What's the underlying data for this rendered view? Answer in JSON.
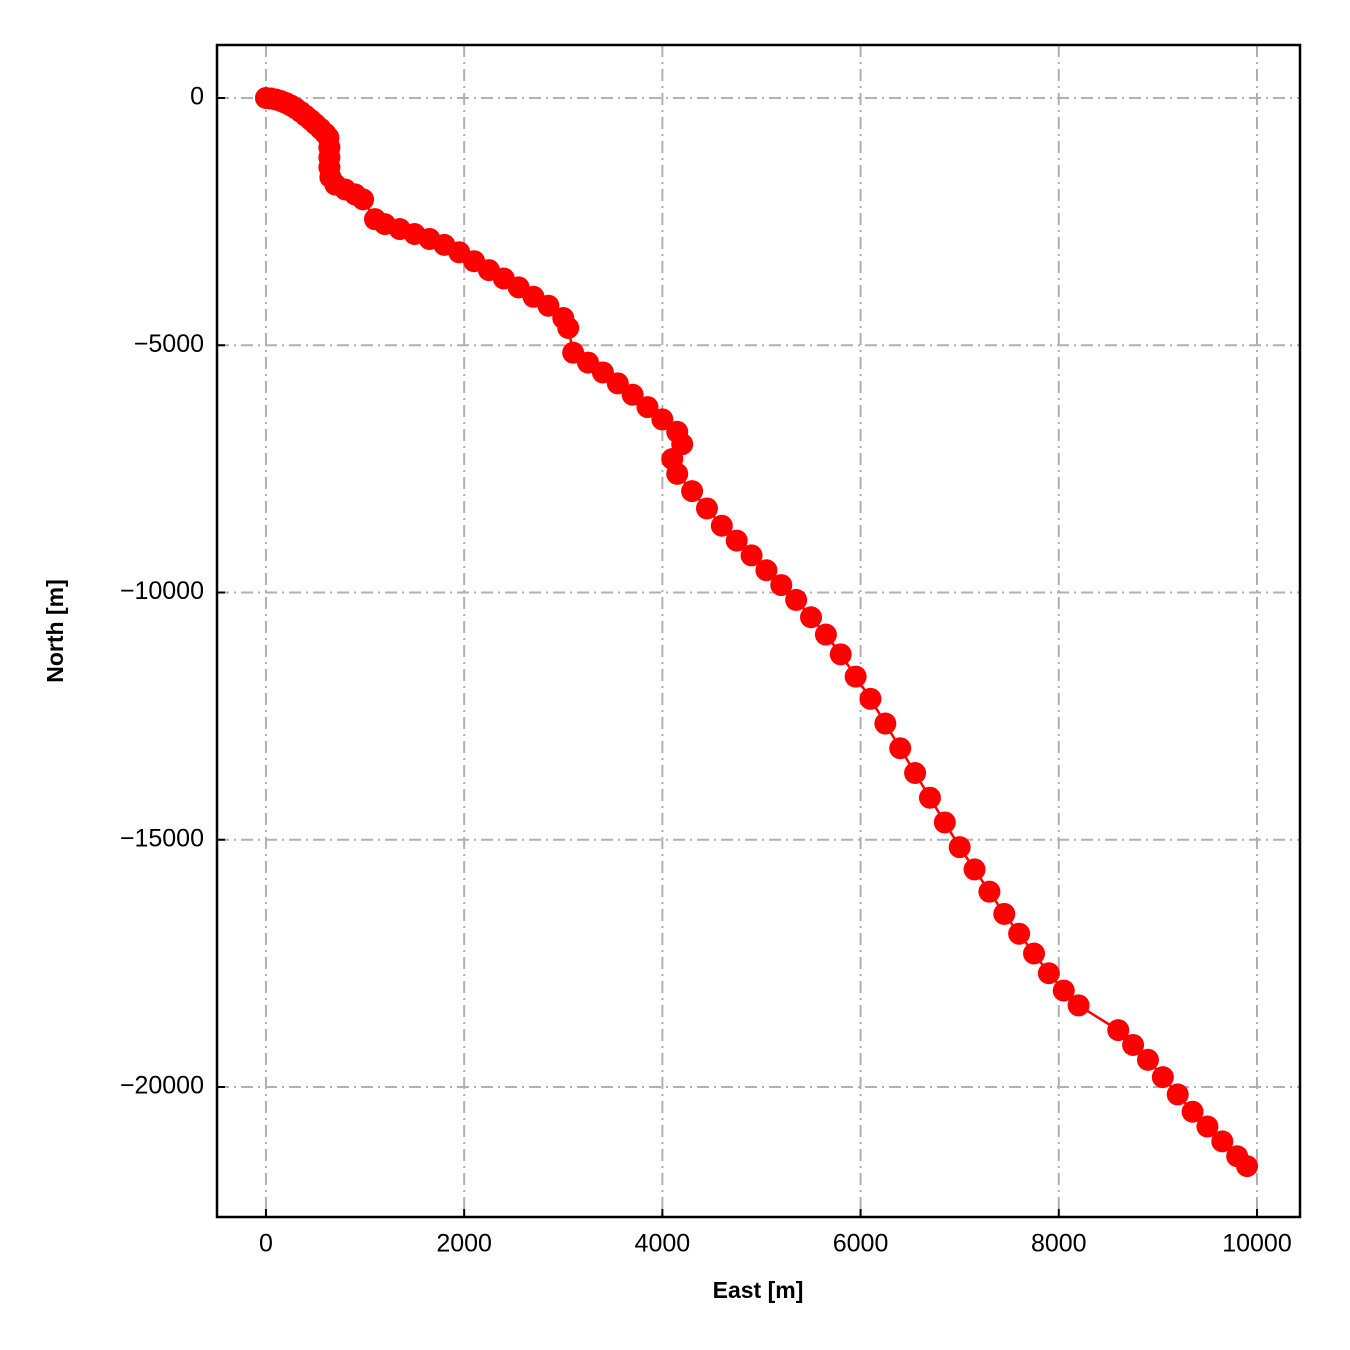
{
  "chart_data": {
    "type": "line",
    "x_label": "East [m]",
    "y_label": "North [m]",
    "color": "#ff0000",
    "grid": true,
    "markers": true,
    "xlim": [
      -494,
      10434
    ],
    "ylim": [
      -22629,
      1072
    ],
    "xticks": [
      0,
      2000,
      4000,
      6000,
      8000,
      10000
    ],
    "yticks": [
      0,
      {
        "value": -5000,
        "label": "−5000"
      },
      {
        "value": -10000,
        "label": "−10000"
      },
      {
        "value": -15000,
        "label": "−15000"
      },
      {
        "value": -20000,
        "label": "−20000"
      }
    ],
    "x": [
      0,
      50,
      100,
      150,
      200,
      250,
      300,
      350,
      400,
      450,
      500,
      550,
      600,
      630,
      640,
      640,
      640,
      650,
      700,
      800,
      900,
      980,
      1100,
      1200,
      1350,
      1500,
      1650,
      1800,
      1950,
      2100,
      2250,
      2400,
      2550,
      2700,
      2850,
      3000,
      3050,
      3100,
      3250,
      3400,
      3550,
      3700,
      3850,
      4000,
      4150,
      4200,
      4100,
      4150,
      4300,
      4450,
      4600,
      4750,
      4900,
      5050,
      5200,
      5350,
      5500,
      5650,
      5800,
      5950,
      6100,
      6250,
      6400,
      6550,
      6700,
      6850,
      7000,
      7150,
      7300,
      7450,
      7600,
      7750,
      7900,
      8050,
      8200,
      8600,
      8750,
      8900,
      9050,
      9200,
      9350,
      9500,
      9650,
      9800,
      9900
    ],
    "values": [
      0,
      -10,
      -30,
      -60,
      -100,
      -150,
      -210,
      -280,
      -360,
      -440,
      -530,
      -620,
      -720,
      -800,
      -1000,
      -1200,
      -1400,
      -1600,
      -1750,
      -1850,
      -1950,
      -2050,
      -2450,
      -2550,
      -2650,
      -2750,
      -2850,
      -2970,
      -3120,
      -3300,
      -3480,
      -3650,
      -3830,
      -4020,
      -4200,
      -4450,
      -4650,
      -5150,
      -5350,
      -5550,
      -5770,
      -6000,
      -6250,
      -6500,
      -6750,
      -7000,
      -7300,
      -7600,
      -7950,
      -8300,
      -8650,
      -8950,
      -9250,
      -9550,
      -9850,
      -10150,
      -10500,
      -10850,
      -11250,
      -11700,
      -12150,
      -12650,
      -13150,
      -13650,
      -14150,
      -14650,
      -15150,
      -15600,
      -16050,
      -16500,
      -16900,
      -17300,
      -17700,
      -18050,
      -18350,
      -18850,
      -19150,
      -19450,
      -19800,
      -20150,
      -20500,
      -20800,
      -21100,
      -21400,
      -21600
    ]
  }
}
